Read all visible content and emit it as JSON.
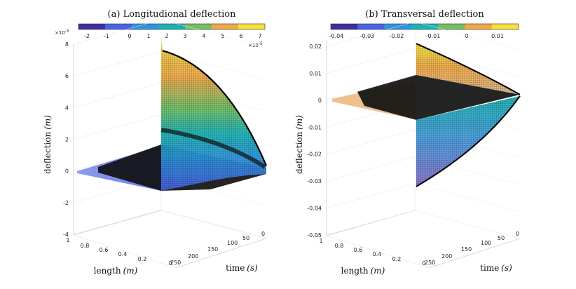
{
  "chart_data": [
    {
      "type": "surface",
      "title": "(a) Longitudional deflection",
      "zlabel_text": "deflection",
      "zlabel_unit": "(m)",
      "xlabel_text": "length",
      "xlabel_unit": "(m)",
      "ylabel_text": "time",
      "ylabel_unit": "(s)",
      "z_exponent": "×10",
      "z_exponent_power": "-5",
      "z_ticks": [
        "8",
        "6",
        "4",
        "2",
        "0",
        "-2",
        "-4"
      ],
      "z_tick_values": [
        8,
        6,
        4,
        2,
        0,
        -2,
        -4
      ],
      "zlim": [
        -4,
        8
      ],
      "length_ticks": [
        "1",
        "0.8",
        "0.6",
        "0.4",
        "0.2",
        "0"
      ],
      "time_ticks": [
        "250",
        "200",
        "150",
        "100",
        "50",
        "0"
      ],
      "colorbar_ticks": [
        "-2",
        "-1",
        "0",
        "1",
        "2",
        "3",
        "4",
        "5",
        "6",
        "7"
      ],
      "colorbar_exponent": "×10",
      "colorbar_exponent_power": "-5",
      "colormap": [
        "#3d2fa0",
        "#4a62e8",
        "#2e93e0",
        "#18b4b4",
        "#72c062",
        "#f0a848",
        "#f4e23a"
      ],
      "surface": {
        "time_range": [
          0,
          250
        ],
        "length_range": [
          0,
          1
        ],
        "tip_peak_value": 7.5,
        "tip_peak_time": 0,
        "root_value": 0,
        "front_edge_value": -0.6
      }
    },
    {
      "type": "surface",
      "title": "(b) Transversal deflection",
      "zlabel_text": "deflection",
      "zlabel_unit": "(m)",
      "xlabel_text": "length",
      "xlabel_unit": "(m)",
      "ylabel_text": "time",
      "ylabel_unit": "(s)",
      "z_ticks": [
        "0.02",
        "0.01",
        "0",
        "-0.01",
        "-0.02",
        "-0.03",
        "-0.04",
        "-0.05"
      ],
      "z_tick_values": [
        0.02,
        0.01,
        0,
        -0.01,
        -0.02,
        -0.03,
        -0.04,
        -0.05
      ],
      "zlim": [
        -0.05,
        0.02
      ],
      "length_ticks": [
        "1",
        "0.8",
        "0.6",
        "0.4",
        "0.2",
        "0"
      ],
      "time_ticks": [
        "250",
        "200",
        "150",
        "100",
        "50",
        "0"
      ],
      "colorbar_ticks": [
        "-0.04",
        "-0.03",
        "-0.02",
        "-0.01",
        "0",
        "0.01"
      ],
      "colormap": [
        "#3d2fa0",
        "#4a62e8",
        "#2e93e0",
        "#18b4b4",
        "#72c062",
        "#f0a848",
        "#f4e23a"
      ],
      "surface": {
        "time_range": [
          0,
          250
        ],
        "length_range": [
          0,
          1
        ],
        "tip_max_value": 0.021,
        "tip_min_value": -0.032,
        "root_value": 0
      }
    }
  ]
}
